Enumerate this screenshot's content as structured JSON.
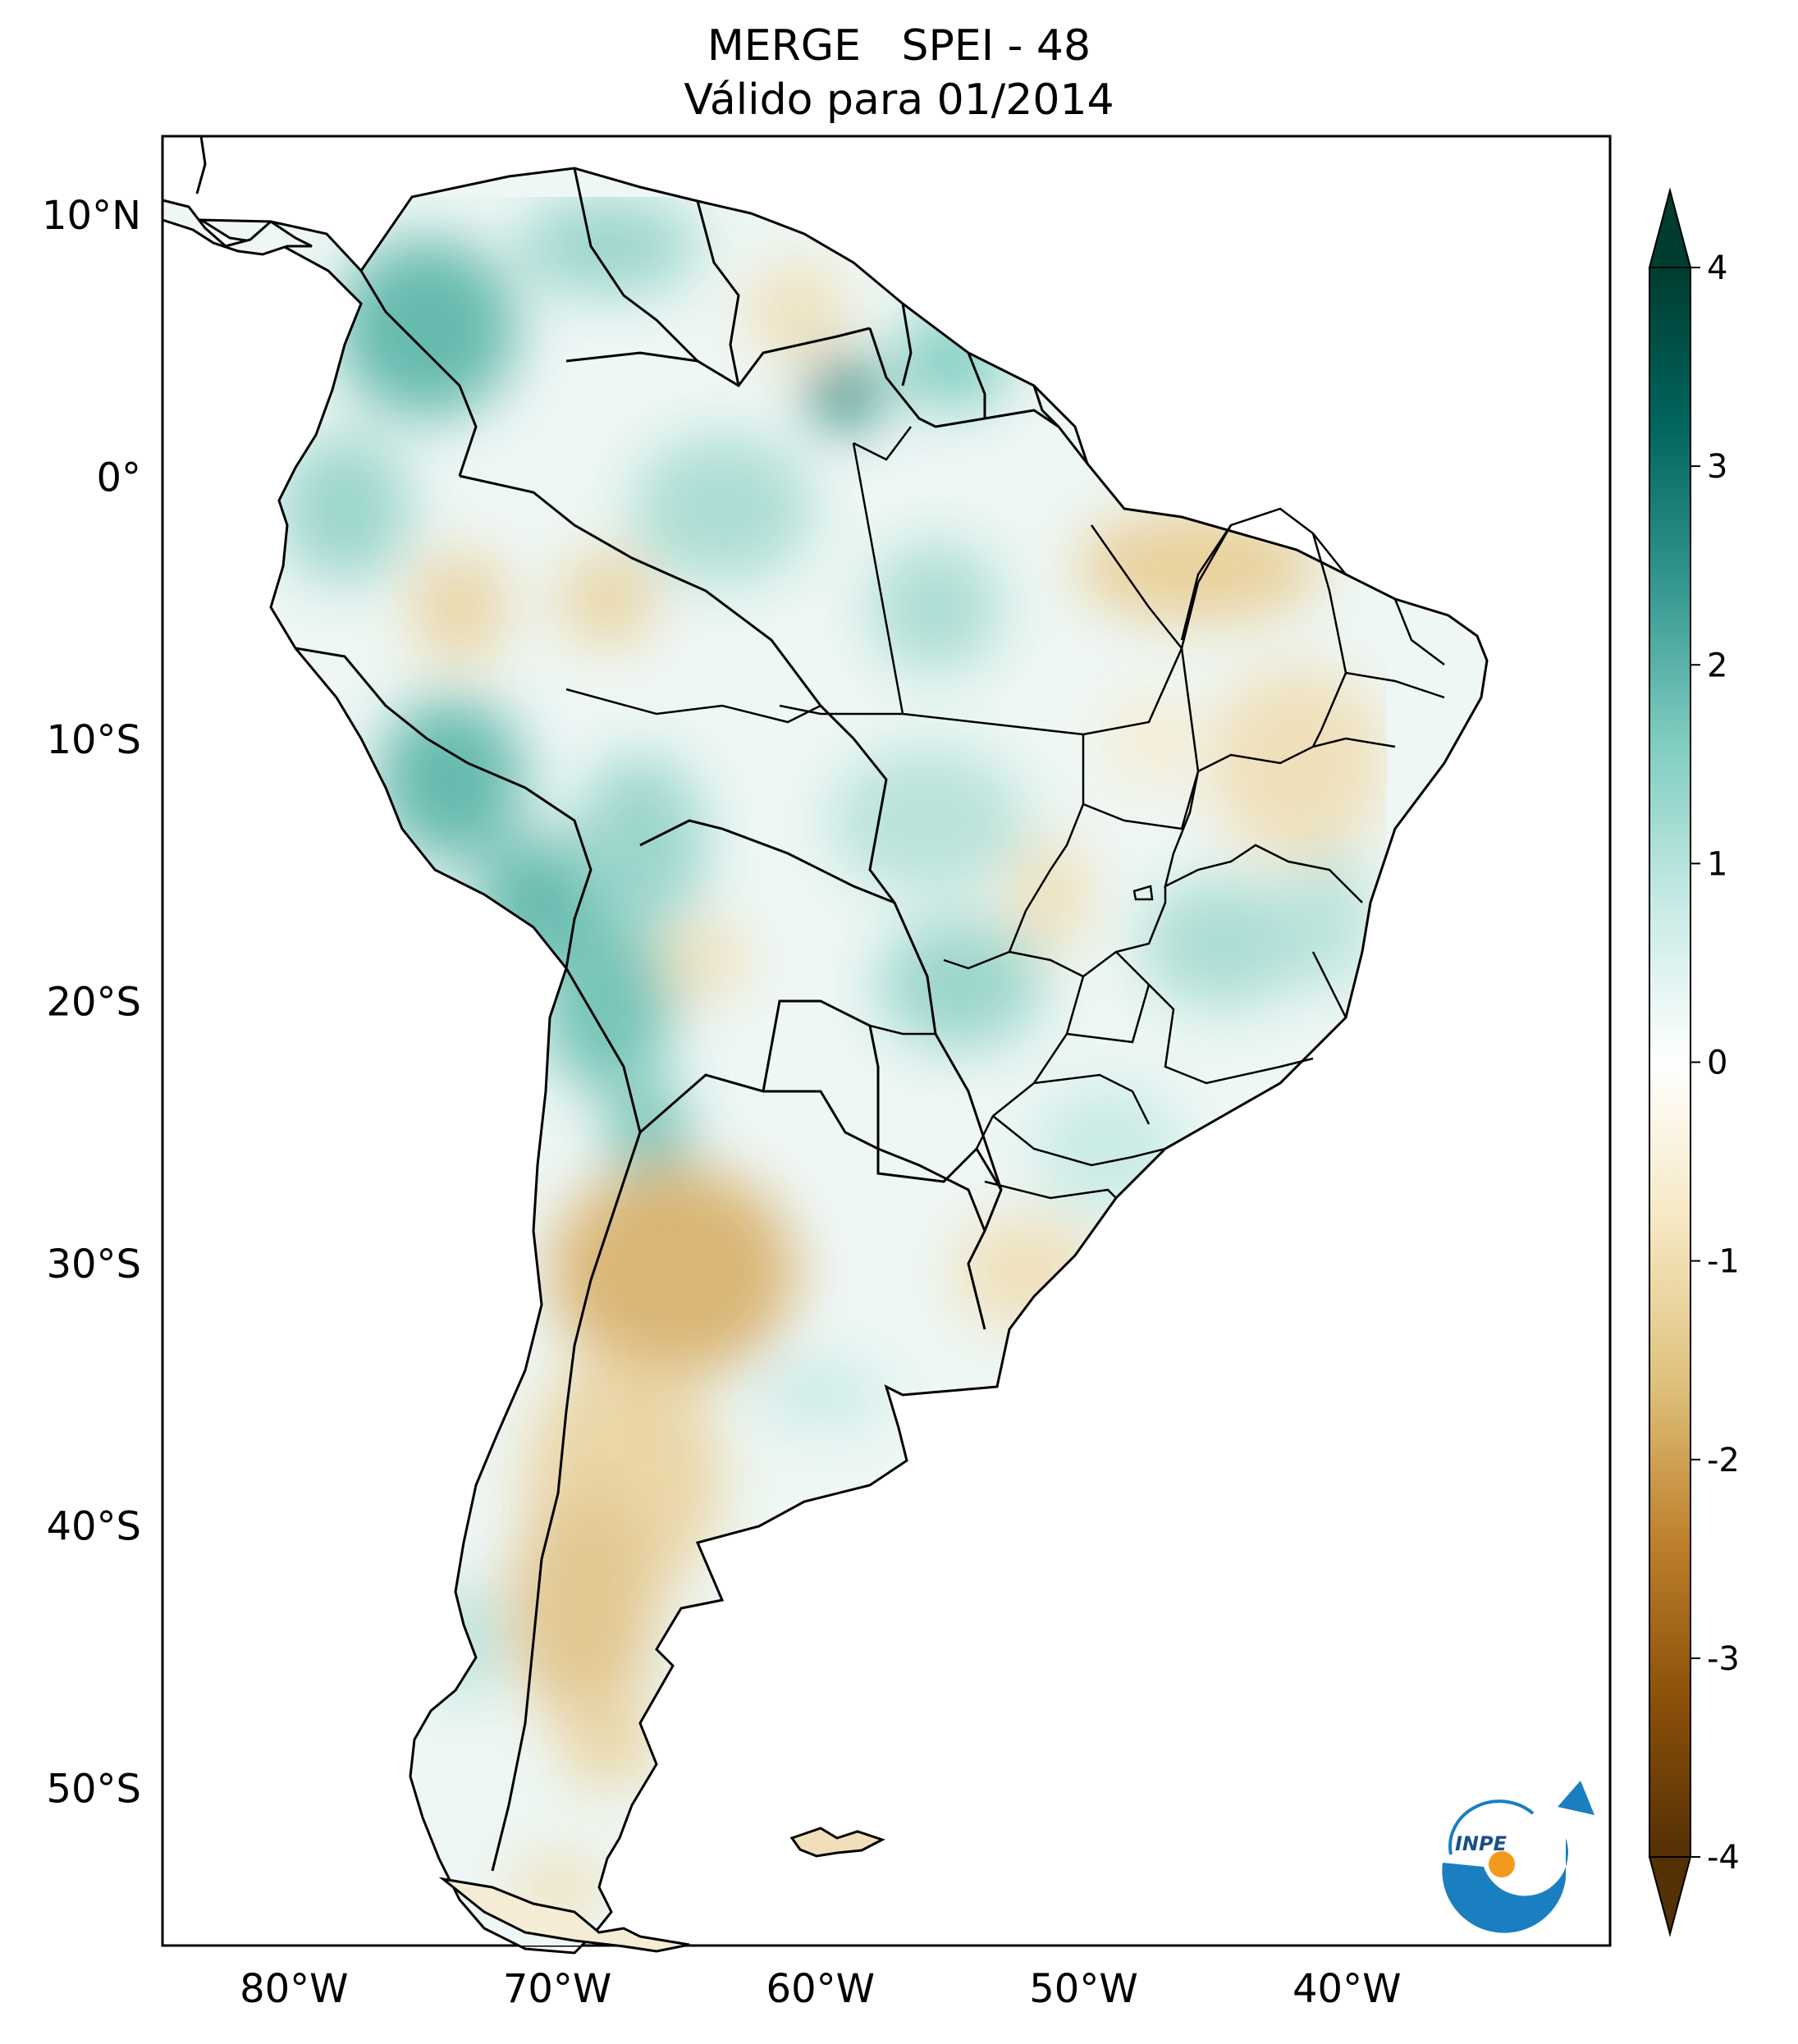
{
  "title": {
    "line1": "MERGE   SPEI - 48",
    "line2": "Válido para 01/2014"
  },
  "map": {
    "projection": "PlateCarree",
    "lon_range": [
      -85,
      -30
    ],
    "lat_range": [
      -56,
      13
    ],
    "lat_ticks": [
      {
        "value": 10,
        "label": "10°N"
      },
      {
        "value": 0,
        "label": "0°"
      },
      {
        "value": -10,
        "label": "10°S"
      },
      {
        "value": -20,
        "label": "20°S"
      },
      {
        "value": -30,
        "label": "30°S"
      },
      {
        "value": -40,
        "label": "40°S"
      },
      {
        "value": -50,
        "label": "50°S"
      }
    ],
    "lon_ticks": [
      {
        "value": -80,
        "label": "80°W"
      },
      {
        "value": -70,
        "label": "70°W"
      },
      {
        "value": -60,
        "label": "60°W"
      },
      {
        "value": -50,
        "label": "50°W"
      },
      {
        "value": -40,
        "label": "40°W"
      }
    ]
  },
  "colorbar": {
    "min": -4,
    "max": 4,
    "extend": "both",
    "colormap": "BrBG",
    "ticks": [
      {
        "value": 4,
        "label": "4"
      },
      {
        "value": 3,
        "label": "3"
      },
      {
        "value": 2,
        "label": "2"
      },
      {
        "value": 1,
        "label": "1"
      },
      {
        "value": 0,
        "label": "0"
      },
      {
        "value": -1,
        "label": "-1"
      },
      {
        "value": -2,
        "label": "-2"
      },
      {
        "value": -3,
        "label": "-3"
      },
      {
        "value": -4,
        "label": "-4"
      }
    ],
    "stops": [
      "#543005",
      "#8c510a",
      "#bf812d",
      "#dfc27d",
      "#f6e8c3",
      "#ffffff",
      "#c7eae5",
      "#80cdc1",
      "#35978f",
      "#01665e",
      "#003c30"
    ]
  },
  "logo": {
    "text": "INPE",
    "colors": {
      "blue": "#1a7fc1",
      "orange": "#f39a1e"
    }
  }
}
